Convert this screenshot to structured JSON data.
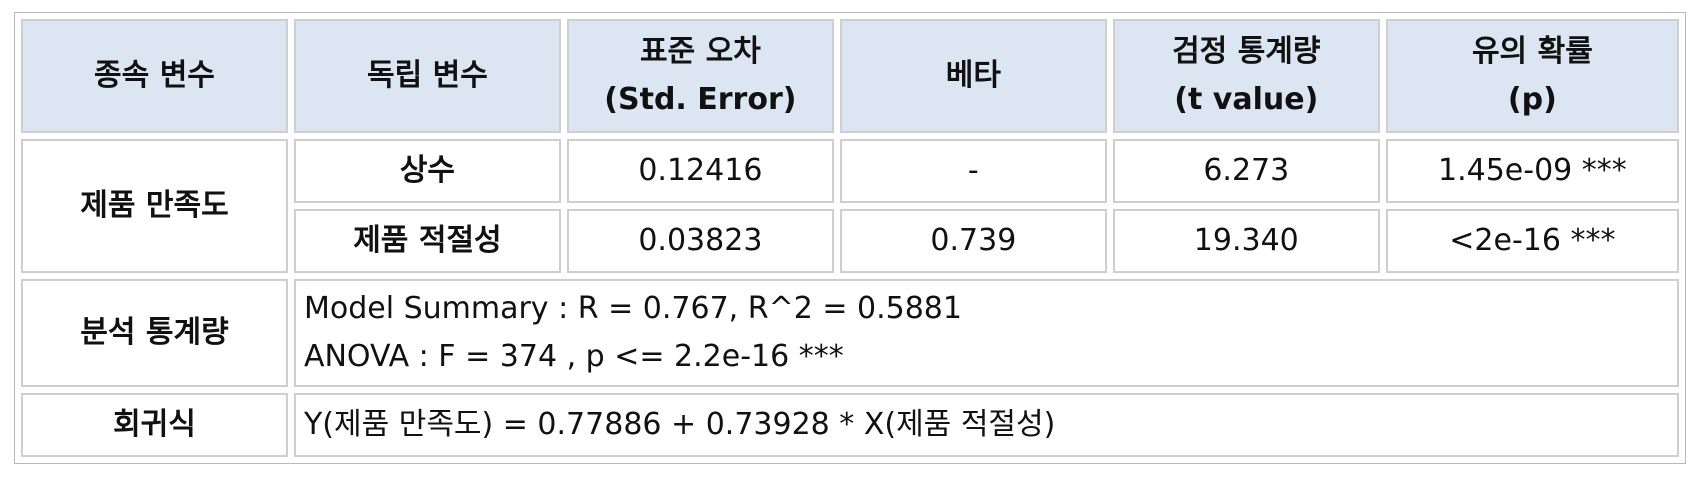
{
  "table": {
    "headers": [
      {
        "line1": "종속 변수",
        "line2": ""
      },
      {
        "line1": "독립 변수",
        "line2": ""
      },
      {
        "line1": "표준 오차",
        "line2": "(Std. Error)"
      },
      {
        "line1": "베타",
        "line2": ""
      },
      {
        "line1": "검정 통계량",
        "line2": "(t value)"
      },
      {
        "line1": "유의 확률",
        "line2": "(p)"
      }
    ],
    "dependent_variable": "제품 만족도",
    "rows": [
      {
        "independent": "상수",
        "std_error": "0.12416",
        "beta": "-",
        "t_value": "6.273",
        "p": "1.45e-09  ***"
      },
      {
        "independent": "제품 적절성",
        "std_error": "0.03823",
        "beta": "0.739",
        "t_value": "19.340",
        "p": "<2e-16  ***"
      }
    ],
    "stats_label": "분석 통계량",
    "stats_lines": [
      "Model Summary : R = 0.767, R^2 = 0.5881",
      "ANOVA  : F = 374 , p <= 2.2e-16 ***"
    ],
    "equation_label": "회귀식",
    "equation": "Y(제품 만족도) = 0.77886 + 0.73928 * X(제품 적절성)"
  },
  "colors": {
    "header_bg": "#dce6f2",
    "cell_border": "#cfcfcf"
  }
}
